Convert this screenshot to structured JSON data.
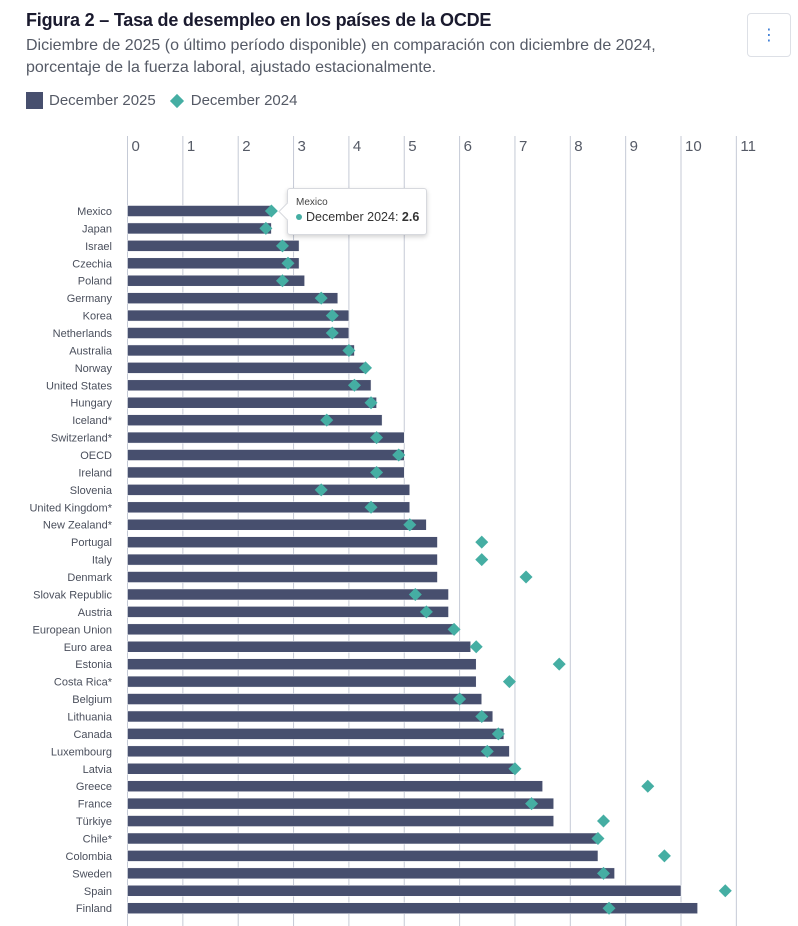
{
  "header": {
    "title": "Figura 2 – Tasa de desempleo en los países de la OCDE",
    "subtitle": "Diciembre de 2025 (o último período disponible) en comparación con diciembre de 2024, porcentaje de la fuerza laboral, ajustado estacionalmente.",
    "menu_icon": "vertical-ellipsis-icon",
    "menu_glyph": "⋮"
  },
  "legend": {
    "items": [
      {
        "label": "December 2025",
        "shape": "bar",
        "color": "#474f6e"
      },
      {
        "label": "December 2024",
        "shape": "diamond",
        "color": "#45aea3"
      }
    ]
  },
  "tooltip": {
    "title": "Mexico",
    "series": "December 2024",
    "separator": ": ",
    "value": "2.6"
  },
  "chart_data": {
    "type": "bar",
    "orientation": "horizontal",
    "title": "Figura 2 – Tasa de desempleo en los países de la OCDE",
    "subtitle": "Diciembre de 2025 (o último período disponible) en comparación con diciembre de 2024, porcentaje de la fuerza laboral, ajustado estacionalmente.",
    "xlabel": "",
    "ylabel": "",
    "xlim": [
      0,
      11
    ],
    "xticks": [
      "0",
      "1",
      "2",
      "3",
      "4",
      "5",
      "6",
      "7",
      "8",
      "9",
      "10",
      "11"
    ],
    "x_axis_position": "top",
    "grid": true,
    "legend_position": "top-left",
    "colors": {
      "bar": "#474f6e",
      "marker": "#45aea3",
      "grid": "#c5cad6"
    },
    "categories": [
      "Mexico",
      "Japan",
      "Israel",
      "Czechia",
      "Poland",
      "Germany",
      "Korea",
      "Netherlands",
      "Australia",
      "Norway",
      "United States",
      "Hungary",
      "Iceland*",
      "Switzerland*",
      "OECD",
      "Ireland",
      "Slovenia",
      "United Kingdom*",
      "New Zealand*",
      "Portugal",
      "Italy",
      "Denmark",
      "Slovak Republic",
      "Austria",
      "European Union",
      "Euro area",
      "Estonia",
      "Costa Rica*",
      "Belgium",
      "Lithuania",
      "Canada",
      "Luxembourg",
      "Latvia",
      "Greece",
      "France",
      "Türkiye",
      "Chile*",
      "Colombia",
      "Sweden",
      "Spain",
      "Finland"
    ],
    "series": [
      {
        "name": "December 2025",
        "mark": "bar",
        "values": [
          2.6,
          2.6,
          3.1,
          3.1,
          3.2,
          3.8,
          4.0,
          4.0,
          4.1,
          4.3,
          4.4,
          4.5,
          4.6,
          5.0,
          5.0,
          5.0,
          5.1,
          5.1,
          5.4,
          5.6,
          5.6,
          5.6,
          5.8,
          5.8,
          5.9,
          6.2,
          6.3,
          6.3,
          6.4,
          6.6,
          6.8,
          6.9,
          7.0,
          7.5,
          7.7,
          7.7,
          8.5,
          8.5,
          8.8,
          10.0,
          10.3
        ]
      },
      {
        "name": "December 2024",
        "mark": "diamond",
        "values": [
          2.6,
          2.5,
          2.8,
          2.9,
          2.8,
          3.5,
          3.7,
          3.7,
          4.0,
          4.3,
          4.1,
          4.4,
          3.6,
          4.5,
          4.9,
          4.5,
          3.5,
          4.4,
          5.1,
          6.4,
          6.4,
          7.2,
          5.2,
          5.4,
          5.9,
          6.3,
          7.8,
          6.9,
          6.0,
          6.4,
          6.7,
          6.5,
          7.0,
          9.4,
          7.3,
          8.6,
          8.5,
          9.7,
          8.6,
          10.8,
          8.7
        ]
      }
    ]
  }
}
